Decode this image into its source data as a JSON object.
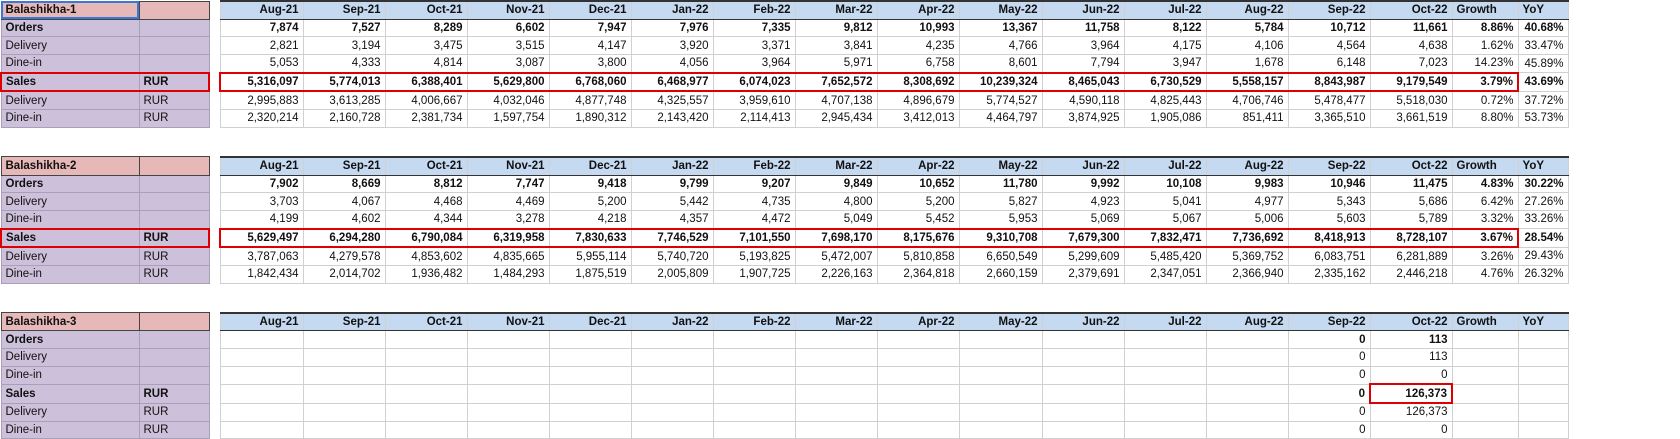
{
  "months": [
    "Aug-21",
    "Sep-21",
    "Oct-21",
    "Nov-21",
    "Dec-21",
    "Jan-22",
    "Feb-22",
    "Mar-22",
    "Apr-22",
    "May-22",
    "Jun-22",
    "Jul-22",
    "Aug-22",
    "Sep-22",
    "Oct-22"
  ],
  "growth_label": "Growth",
  "yoy_label": "YoY",
  "blocks": [
    {
      "name": "Balashikha-1",
      "rows": [
        {
          "label": "Orders",
          "cur": "",
          "bold": true,
          "values": [
            "7,874",
            "7,527",
            "8,289",
            "6,602",
            "7,947",
            "7,976",
            "7,335",
            "9,812",
            "10,993",
            "13,367",
            "11,758",
            "8,122",
            "5,784",
            "10,712",
            "11,661"
          ],
          "growth": "8.86%",
          "yoy": "40.68%"
        },
        {
          "label": "Delivery",
          "cur": "",
          "bold": false,
          "values": [
            "2,821",
            "3,194",
            "3,475",
            "3,515",
            "4,147",
            "3,920",
            "3,371",
            "3,841",
            "4,235",
            "4,766",
            "3,964",
            "4,175",
            "4,106",
            "4,564",
            "4,638"
          ],
          "growth": "1.62%",
          "yoy": "33.47%"
        },
        {
          "label": "Dine-in",
          "cur": "",
          "bold": false,
          "values": [
            "5,053",
            "4,333",
            "4,814",
            "3,087",
            "3,800",
            "4,056",
            "3,964",
            "5,971",
            "6,758",
            "8,601",
            "7,794",
            "3,947",
            "1,678",
            "6,148",
            "7,023"
          ],
          "growth": "14.23%",
          "yoy": "45.89%"
        },
        {
          "label": "Sales",
          "cur": "RUR",
          "bold": true,
          "sales": true,
          "values": [
            "5,316,097",
            "5,774,013",
            "6,388,401",
            "5,629,800",
            "6,768,060",
            "6,468,977",
            "6,074,023",
            "7,652,572",
            "8,308,692",
            "10,239,324",
            "8,465,043",
            "6,730,529",
            "5,558,157",
            "8,843,987",
            "9,179,549"
          ],
          "growth": "3.79%",
          "yoy": "43.69%"
        },
        {
          "label": "Delivery",
          "cur": "RUR",
          "bold": false,
          "values": [
            "2,995,883",
            "3,613,285",
            "4,006,667",
            "4,032,046",
            "4,877,748",
            "4,325,557",
            "3,959,610",
            "4,707,138",
            "4,896,679",
            "5,774,527",
            "4,590,118",
            "4,825,443",
            "4,706,746",
            "5,478,477",
            "5,518,030"
          ],
          "growth": "0.72%",
          "yoy": "37.72%"
        },
        {
          "label": "Dine-in",
          "cur": "RUR",
          "bold": false,
          "values": [
            "2,320,214",
            "2,160,728",
            "2,381,734",
            "1,597,754",
            "1,890,312",
            "2,143,420",
            "2,114,413",
            "2,945,434",
            "3,412,013",
            "4,464,797",
            "3,874,925",
            "1,905,086",
            "851,411",
            "3,365,510",
            "3,661,519"
          ],
          "growth": "8.80%",
          "yoy": "53.73%"
        }
      ]
    },
    {
      "name": "Balashikha-2",
      "rows": [
        {
          "label": "Orders",
          "cur": "",
          "bold": true,
          "values": [
            "7,902",
            "8,669",
            "8,812",
            "7,747",
            "9,418",
            "9,799",
            "9,207",
            "9,849",
            "10,652",
            "11,780",
            "9,992",
            "10,108",
            "9,983",
            "10,946",
            "11,475"
          ],
          "growth": "4.83%",
          "yoy": "30.22%"
        },
        {
          "label": "Delivery",
          "cur": "",
          "bold": false,
          "values": [
            "3,703",
            "4,067",
            "4,468",
            "4,469",
            "5,200",
            "5,442",
            "4,735",
            "4,800",
            "5,200",
            "5,827",
            "4,923",
            "5,041",
            "4,977",
            "5,343",
            "5,686"
          ],
          "growth": "6.42%",
          "yoy": "27.26%"
        },
        {
          "label": "Dine-in",
          "cur": "",
          "bold": false,
          "values": [
            "4,199",
            "4,602",
            "4,344",
            "3,278",
            "4,218",
            "4,357",
            "4,472",
            "5,049",
            "5,452",
            "5,953",
            "5,069",
            "5,067",
            "5,006",
            "5,603",
            "5,789"
          ],
          "growth": "3.32%",
          "yoy": "33.26%"
        },
        {
          "label": "Sales",
          "cur": "RUR",
          "bold": true,
          "sales": true,
          "values": [
            "5,629,497",
            "6,294,280",
            "6,790,084",
            "6,319,958",
            "7,830,633",
            "7,746,529",
            "7,101,550",
            "7,698,170",
            "8,175,676",
            "9,310,708",
            "7,679,300",
            "7,832,471",
            "7,736,692",
            "8,418,913",
            "8,728,107"
          ],
          "growth": "3.67%",
          "yoy": "28.54%"
        },
        {
          "label": "Delivery",
          "cur": "RUR",
          "bold": false,
          "values": [
            "3,787,063",
            "4,279,578",
            "4,853,602",
            "4,835,665",
            "5,955,114",
            "5,740,720",
            "5,193,825",
            "5,472,007",
            "5,810,858",
            "6,650,549",
            "5,299,609",
            "5,485,420",
            "5,369,752",
            "6,083,751",
            "6,281,889"
          ],
          "growth": "3.26%",
          "yoy": "29.43%"
        },
        {
          "label": "Dine-in",
          "cur": "RUR",
          "bold": false,
          "values": [
            "1,842,434",
            "2,014,702",
            "1,936,482",
            "1,484,293",
            "1,875,519",
            "2,005,809",
            "1,907,725",
            "2,226,163",
            "2,364,818",
            "2,660,159",
            "2,379,691",
            "2,347,051",
            "2,366,940",
            "2,335,162",
            "2,446,218"
          ],
          "growth": "4.76%",
          "yoy": "26.32%"
        }
      ]
    },
    {
      "name": "Balashikha-3",
      "rows": [
        {
          "label": "Orders",
          "cur": "",
          "bold": true,
          "values": [
            "",
            "",
            "",
            "",
            "",
            "",
            "",
            "",
            "",
            "",
            "",
            "",
            "",
            "0",
            "113"
          ],
          "growth": "",
          "yoy": ""
        },
        {
          "label": "Delivery",
          "cur": "",
          "bold": false,
          "values": [
            "",
            "",
            "",
            "",
            "",
            "",
            "",
            "",
            "",
            "",
            "",
            "",
            "",
            "0",
            "113"
          ],
          "growth": "",
          "yoy": ""
        },
        {
          "label": "Dine-in",
          "cur": "",
          "bold": false,
          "values": [
            "",
            "",
            "",
            "",
            "",
            "",
            "",
            "",
            "",
            "",
            "",
            "",
            "",
            "0",
            "0"
          ],
          "growth": "",
          "yoy": ""
        },
        {
          "label": "Sales",
          "cur": "RUR",
          "bold": true,
          "values": [
            "",
            "",
            "",
            "",
            "",
            "",
            "",
            "",
            "",
            "",
            "",
            "",
            "",
            "0",
            "126,373"
          ],
          "growth": "",
          "yoy": ""
        },
        {
          "label": "Delivery",
          "cur": "RUR",
          "bold": false,
          "values": [
            "",
            "",
            "",
            "",
            "",
            "",
            "",
            "",
            "",
            "",
            "",
            "",
            "",
            "0",
            "126,373"
          ],
          "growth": "",
          "yoy": ""
        },
        {
          "label": "Dine-in",
          "cur": "RUR",
          "bold": false,
          "values": [
            "",
            "",
            "",
            "",
            "",
            "",
            "",
            "",
            "",
            "",
            "",
            "",
            "",
            "0",
            "0"
          ],
          "growth": "",
          "yoy": ""
        }
      ]
    }
  ]
}
